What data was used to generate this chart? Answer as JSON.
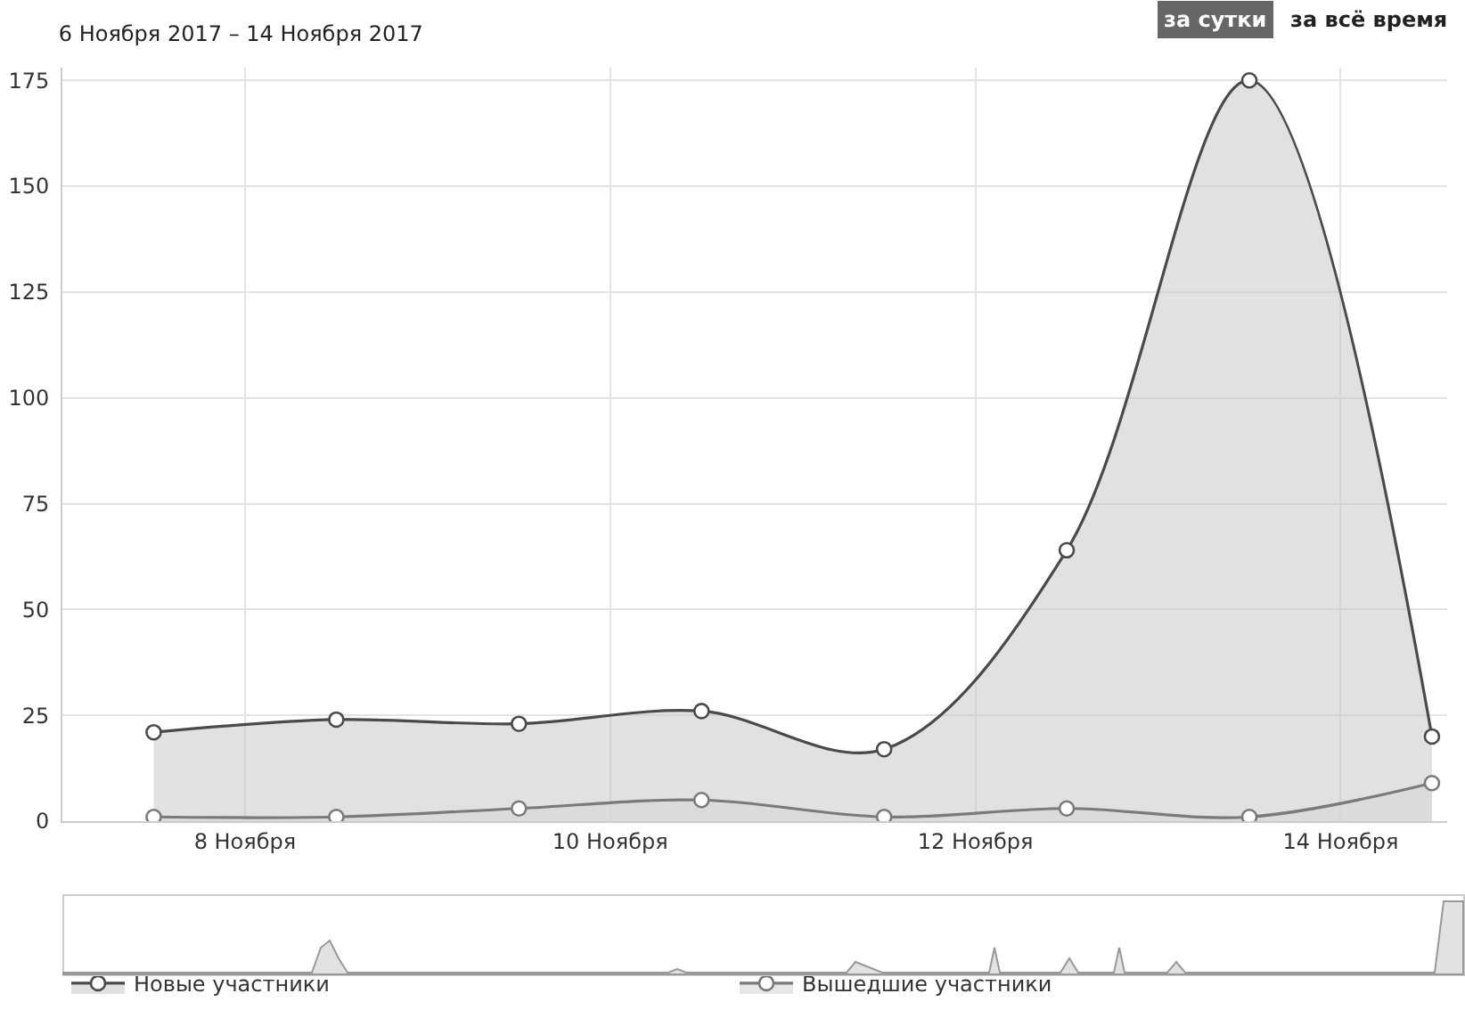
{
  "chart_data": {
    "type": "area",
    "title": "6 Ноября 2017 – 14 Ноября 2017",
    "annotations": [
      "за сутки",
      "за всё время"
    ],
    "x": [
      "2017-11-07T12:00",
      "2017-11-08T12:00",
      "2017-11-09T12:00",
      "2017-11-10T12:00",
      "2017-11-11T12:00",
      "2017-11-12T12:00",
      "2017-11-13T12:00",
      "2017-11-14T12:00"
    ],
    "series": [
      {
        "name": "Новые участники",
        "color": "#4a4a4a",
        "values": [
          21,
          24,
          23,
          26,
          17,
          64,
          175,
          20
        ]
      },
      {
        "name": "Вышедшие участники",
        "color": "#7a7a7a",
        "values": [
          1,
          1,
          3,
          5,
          1,
          3,
          1,
          9
        ]
      }
    ],
    "xlim": [
      "2017-11-07T00:00",
      "2017-11-14T14:00"
    ],
    "xticks": [
      {
        "value": "2017-11-08",
        "label": "8 Ноября"
      },
      {
        "value": "2017-11-10",
        "label": "10 Ноября"
      },
      {
        "value": "2017-11-12",
        "label": "12 Ноября"
      },
      {
        "value": "2017-11-14",
        "label": "14 Ноября"
      }
    ],
    "ylim": [
      0,
      178
    ],
    "yticks": [
      0,
      25,
      50,
      75,
      100,
      125,
      150,
      175
    ],
    "grid": true,
    "legend": "bottom",
    "marker": "circle",
    "line_style": "solid"
  }
}
